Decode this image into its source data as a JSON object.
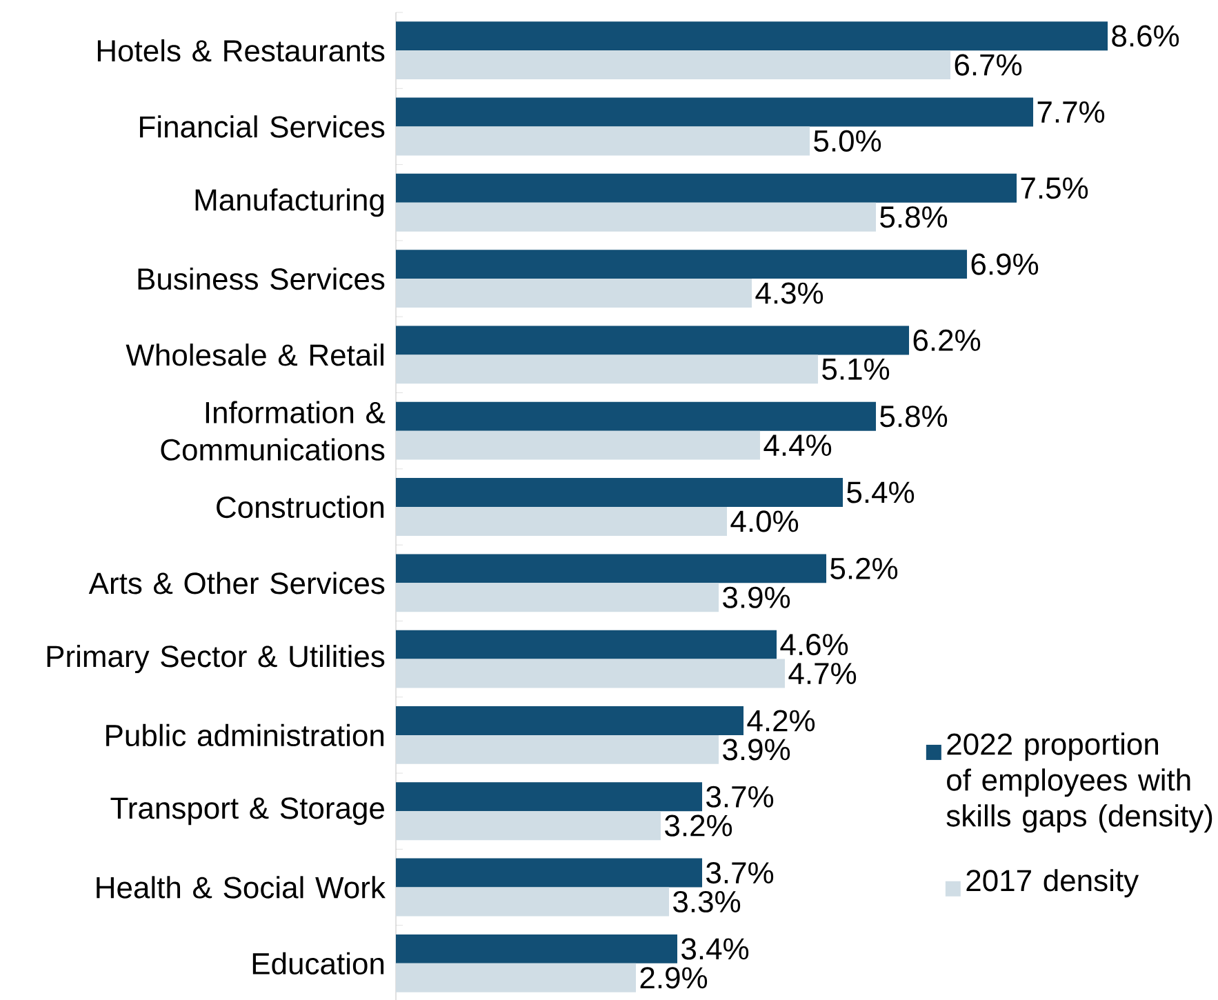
{
  "chart_data": {
    "type": "bar",
    "orientation": "horizontal",
    "categories": [
      "Hotels & Restaurants",
      "Financial Services",
      "Manufacturing",
      "Business Services",
      "Wholesale & Retail",
      "Information & Communications",
      "Construction",
      "Arts & Other Services",
      "Primary Sector & Utilities",
      "Public administration",
      "Transport & Storage",
      "Health & Social Work",
      "Education"
    ],
    "series": [
      {
        "name": "2022 proportion of employees with skills gaps (density)",
        "color": "#124f75",
        "values": [
          8.6,
          7.7,
          7.5,
          6.9,
          6.2,
          5.8,
          5.4,
          5.2,
          4.6,
          4.2,
          3.7,
          3.7,
          3.4
        ],
        "value_labels": [
          "8.6%",
          "7.7%",
          "7.5%",
          "6.9%",
          "6.2%",
          "5.8%",
          "5.4%",
          "5.2%",
          "4.6%",
          "4.2%",
          "3.7%",
          "3.7%",
          "3.4%"
        ]
      },
      {
        "name": "2017 density",
        "color": "#d0dde5",
        "values": [
          6.7,
          5.0,
          5.8,
          4.3,
          5.1,
          4.4,
          4.0,
          3.9,
          4.7,
          3.9,
          3.2,
          3.3,
          2.9
        ],
        "value_labels": [
          "6.7%",
          "5.0%",
          "5.8%",
          "4.3%",
          "5.1%",
          "4.4%",
          "4.0%",
          "3.9%",
          "4.7%",
          "3.9%",
          "3.2%",
          "3.3%",
          "2.9%"
        ]
      }
    ],
    "tick_labels": "y",
    "legend": "bottom right"
  }
}
